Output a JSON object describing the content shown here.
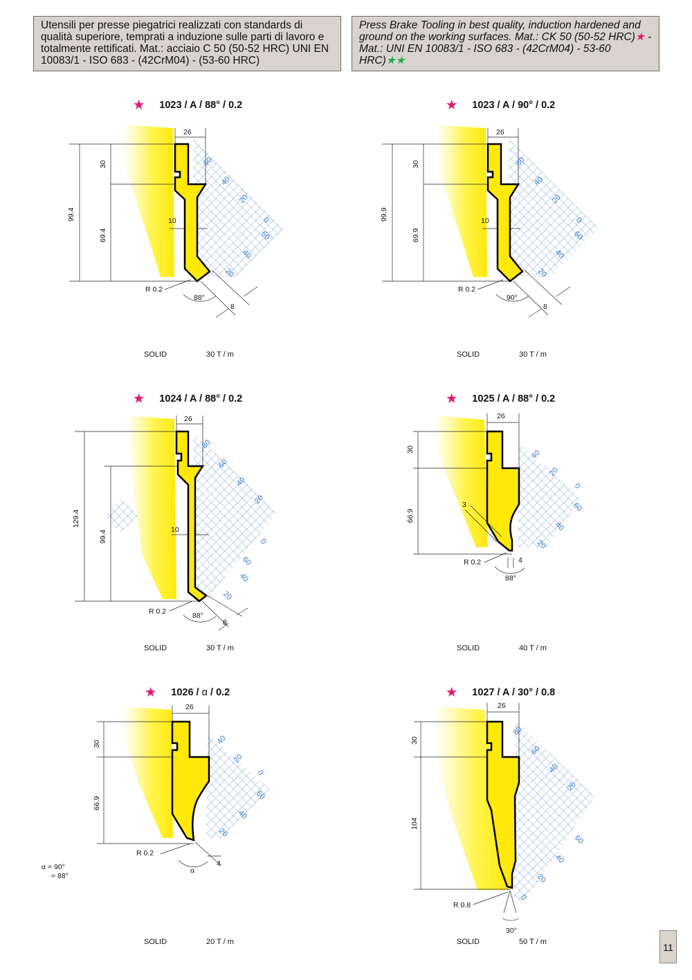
{
  "header": {
    "italian": "Utensili per presse piegatrici realizzati con standards di qualità superiore, temprati a induzione sulle parti di lavoro e totalmente rettificati. Mat.: acciaio C 50 (50-52 HRC) UNI EN 10083/1 - ISO 683 - (42CrM04) - (53-60 HRC)",
    "english_1": "Press Brake Tooling in best quality, induction hardened and ground on the working surfaces. Mat.: CK 50 (50-52 HRC)",
    "english_2": " - Mat.: UNI EN 10083/1 - ISO 683 - (42CrM04) - 53-60 HRC)",
    "star": "★",
    "stars_double": "★★"
  },
  "page_number": "11",
  "colors": {
    "tool_fill": "#ffe80a",
    "highlight": "#fff45a",
    "grid": "#5c8fd6",
    "star": "#e4176f",
    "star_green": "#17a84b",
    "header_bg": "#d8d3cd"
  },
  "tools": [
    {
      "title": "1023 / A / 88° / 0.2",
      "type": "SOLID",
      "load": "30 T / m",
      "dims": {
        "width": "26",
        "upper": "30",
        "total": "99.4",
        "lower": "69.4",
        "neck": "10",
        "radius": "R 0.2",
        "angle": "88°",
        "tip": "8"
      },
      "scale": [
        "60",
        "40",
        "20",
        "0",
        "60",
        "40",
        "20"
      ]
    },
    {
      "title": "1023 / A / 90° / 0.2",
      "type": "SOLID",
      "load": "30 T / m",
      "dims": {
        "width": "26",
        "upper": "30",
        "total": "99.9",
        "lower": "69.9",
        "neck": "10",
        "radius": "R 0.2",
        "angle": "90°",
        "tip": "8"
      },
      "scale": [
        "60",
        "40",
        "20",
        "0",
        "60",
        "40",
        "20"
      ]
    },
    {
      "title": "1024 / A / 88° / 0.2",
      "type": "SOLID",
      "load": "30 T / m",
      "dims": {
        "width": "26",
        "total": "129.4",
        "lower": "99.4",
        "neck": "10",
        "radius": "R 0.2",
        "angle": "88°",
        "tip": "8"
      },
      "scale": [
        "80",
        "60",
        "40",
        "20",
        "0",
        "60",
        "40",
        "20"
      ]
    },
    {
      "title": "1025 / A / 88° / 0.2",
      "type": "SOLID",
      "load": "40 T / m",
      "dims": {
        "width": "26",
        "upper": "30",
        "lower": "66.9",
        "neck": "3",
        "radius": "R 0.2",
        "angle": "88°",
        "tip": "4"
      },
      "scale": [
        "40",
        "20",
        "0",
        "60",
        "40",
        "20"
      ]
    },
    {
      "title_number": "1026",
      "title_alpha": "α",
      "title_rest": "0.2",
      "type": "SOLID",
      "load": "20 T / m",
      "dims": {
        "width": "26",
        "upper": "30",
        "lower": "66.9",
        "radius": "R 0.2",
        "angle": "α",
        "tip": "4"
      },
      "scale": [
        "40",
        "20",
        "0",
        "60",
        "40",
        "20"
      ],
      "alpha_note_1": "α = 90°",
      "alpha_note_2": "= 88°"
    },
    {
      "title": "1027 / A / 30° / 0.8",
      "type": "SOLID",
      "load": "50 T / m",
      "dims": {
        "width": "26",
        "upper": "30",
        "lower": "104",
        "radius": "R 0.8",
        "angle": "30°"
      },
      "scale": [
        "80",
        "60",
        "40",
        "20",
        "60",
        "40",
        "20",
        "0"
      ]
    }
  ]
}
